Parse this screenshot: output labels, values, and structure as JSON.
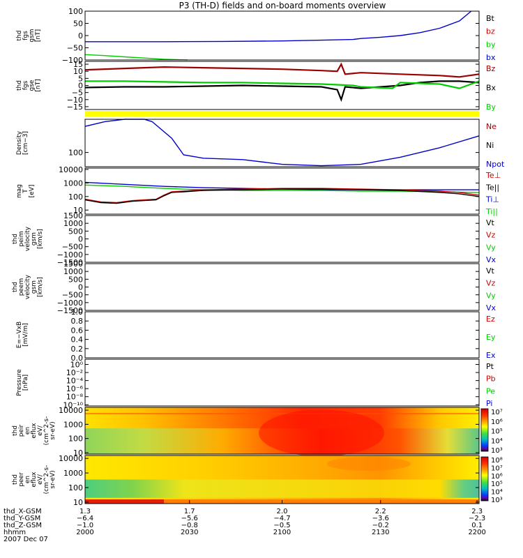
{
  "title": "P3 (TH-D) fields and on-board moments overview",
  "date": "2007 Dec 07",
  "colors": {
    "black": "#000000",
    "red": "#cc0000",
    "green": "#00cc00",
    "blue": "#0000cc",
    "darkred": "#990000",
    "lightgreen": "#33ee33",
    "yellow": "#ffff00"
  },
  "chart_data": [
    {
      "type": "line",
      "panel": "fgs_gsm",
      "ylabel": [
        "thd",
        "fgs",
        "gsm",
        "[nT]"
      ],
      "ylim": [
        -100,
        100
      ],
      "yticks": [
        "100",
        "50",
        "0",
        "−50",
        "−100"
      ],
      "ytick_values": [
        100,
        50,
        0,
        -50,
        -100
      ],
      "legend": [
        {
          "name": "Bt",
          "color": "#000000"
        },
        {
          "name": "bz",
          "color": "#cc0000"
        },
        {
          "name": "by",
          "color": "#00cc00"
        },
        {
          "name": "bx",
          "color": "#0000cc"
        }
      ],
      "series": [
        {
          "name": "bx",
          "color": "#0000cc",
          "x": [
            0,
            0.2,
            0.35,
            0.5,
            0.6,
            0.68,
            0.7,
            0.75,
            0.8,
            0.85,
            0.9,
            0.95,
            0.98
          ],
          "y": [
            -25,
            -25,
            -24,
            -22,
            -19,
            -16,
            -12,
            -7,
            0,
            12,
            30,
            60,
            100
          ]
        },
        {
          "name": "by",
          "color": "#00cc00",
          "x": [
            0,
            0.05,
            0.1,
            0.15,
            0.2,
            0.26
          ],
          "y": [
            -78,
            -82,
            -87,
            -92,
            -97,
            -100
          ]
        }
      ]
    },
    {
      "type": "line",
      "panel": "fgs_gse",
      "ylabel": [
        "thd",
        "fgs",
        "gse",
        "[nT]"
      ],
      "ylim": [
        -17,
        17
      ],
      "yticks": [
        "15",
        "10",
        "5",
        "0",
        "−5",
        "−10",
        "−15"
      ],
      "ytick_values": [
        15,
        10,
        5,
        0,
        -5,
        -10,
        -15
      ],
      "legend": [
        {
          "name": "Bz",
          "color": "#990000"
        },
        {
          "name": "Bx",
          "color": "#000000"
        },
        {
          "name": "By",
          "color": "#00cc00"
        }
      ],
      "series": [
        {
          "name": "Bz",
          "color": "#990000",
          "x": [
            0,
            0.1,
            0.2,
            0.3,
            0.4,
            0.5,
            0.6,
            0.64,
            0.65,
            0.66,
            0.7,
            0.8,
            0.9,
            0.95,
            1
          ],
          "y": [
            11,
            12,
            13,
            12.5,
            12,
            11.5,
            10.5,
            10,
            15,
            8,
            9,
            8,
            7,
            6,
            8
          ]
        },
        {
          "name": "Bx",
          "color": "#000000",
          "x": [
            0,
            0.1,
            0.2,
            0.3,
            0.4,
            0.5,
            0.6,
            0.64,
            0.65,
            0.66,
            0.7,
            0.8,
            0.85,
            0.9,
            0.95,
            1
          ],
          "y": [
            -1.5,
            -1,
            -1,
            -0.5,
            0,
            -0.5,
            -1,
            -3,
            -10,
            -1,
            -2,
            0,
            2,
            3,
            3,
            2
          ]
        },
        {
          "name": "By",
          "color": "#00cc00",
          "x": [
            0,
            0.1,
            0.2,
            0.3,
            0.4,
            0.5,
            0.6,
            0.68,
            0.7,
            0.78,
            0.8,
            0.9,
            0.95,
            1
          ],
          "y": [
            3,
            3,
            2.5,
            2,
            2,
            1.5,
            1,
            0,
            -1,
            -2,
            2,
            1,
            -2,
            3
          ]
        }
      ]
    },
    {
      "type": "line",
      "panel": "density",
      "ylabel": [
        "Density",
        "[cm−3]"
      ],
      "ylim": [
        0,
        1
      ],
      "yticks": [
        "100"
      ],
      "ytick_values": [
        0.3
      ],
      "legend": [
        {
          "name": "Ne",
          "color": "#990000"
        },
        {
          "name": "Ni",
          "color": "#000000"
        },
        {
          "name": "Npot",
          "color": "#0000cc"
        }
      ],
      "series": [
        {
          "name": "Npot",
          "color": "#0000cc",
          "x": [
            0,
            0.05,
            0.1,
            0.15,
            0.17,
            0.22,
            0.25,
            0.3,
            0.4,
            0.5,
            0.6,
            0.7,
            0.8,
            0.9,
            1
          ],
          "y": [
            0.85,
            0.95,
            1,
            1,
            0.95,
            0.6,
            0.25,
            0.18,
            0.15,
            0.05,
            0.02,
            0.05,
            0.2,
            0.4,
            0.65
          ]
        }
      ]
    },
    {
      "type": "line",
      "panel": "temperature",
      "ylabel": [
        "mag",
        "T",
        "[eV]"
      ],
      "ylim": [
        0.7,
        4.1
      ],
      "yticks": [
        "10000",
        "1000",
        "100",
        "10"
      ],
      "ytick_values": [
        4,
        3,
        2,
        1
      ],
      "legend": [
        {
          "name": "Te⊥",
          "color": "#cc0000"
        },
        {
          "name": "Te||",
          "color": "#000000"
        },
        {
          "name": "Ti⊥",
          "color": "#0000cc"
        },
        {
          "name": "Ti||",
          "color": "#00cc00"
        }
      ],
      "series": [
        {
          "name": "Ti⊥",
          "color": "#0000cc",
          "x": [
            0,
            0.1,
            0.2,
            0.3,
            0.4,
            0.5,
            0.6,
            0.7,
            0.8,
            0.9,
            1
          ],
          "y": [
            3.05,
            2.9,
            2.75,
            2.65,
            2.6,
            2.55,
            2.5,
            2.5,
            2.5,
            2.5,
            2.5
          ]
        },
        {
          "name": "Ti||",
          "color": "#00cc00",
          "x": [
            0,
            0.1,
            0.2,
            0.3,
            0.4,
            0.5,
            0.6,
            0.7,
            0.8,
            0.9,
            1
          ],
          "y": [
            2.85,
            2.75,
            2.6,
            2.5,
            2.45,
            2.45,
            2.45,
            2.4,
            2.4,
            2.35,
            2.3
          ]
        },
        {
          "name": "Te⊥",
          "color": "#cc0000",
          "x": [
            0,
            0.04,
            0.08,
            0.12,
            0.15,
            0.18,
            0.2,
            0.22,
            0.25,
            0.3,
            0.4,
            0.5,
            0.6,
            0.7,
            0.8,
            0.9,
            0.95,
            1
          ],
          "y": [
            1.8,
            1.6,
            1.55,
            1.7,
            1.75,
            1.8,
            2.1,
            2.35,
            2.4,
            2.5,
            2.55,
            2.6,
            2.6,
            2.55,
            2.5,
            2.4,
            2.3,
            2.1
          ]
        },
        {
          "name": "Te||",
          "color": "#000000",
          "x": [
            0,
            0.04,
            0.08,
            0.12,
            0.15,
            0.18,
            0.2,
            0.22,
            0.25,
            0.3,
            0.4,
            0.5,
            0.6,
            0.7,
            0.8,
            0.9,
            0.95,
            1
          ],
          "y": [
            1.75,
            1.55,
            1.5,
            1.65,
            1.7,
            1.75,
            2.05,
            2.3,
            2.35,
            2.45,
            2.5,
            2.55,
            2.55,
            2.5,
            2.45,
            2.3,
            2.2,
            2.0
          ]
        }
      ]
    },
    {
      "type": "line",
      "panel": "peim_velocity",
      "ylabel": [
        "thd",
        "peim",
        "velocity",
        "gsm",
        "[km/s]"
      ],
      "ylim": [
        -1500,
        1500
      ],
      "yticks": [
        "1500",
        "1000",
        "500",
        "0",
        "−500",
        "−1000",
        "−1500"
      ],
      "ytick_values": [
        1500,
        1000,
        500,
        0,
        -500,
        -1000,
        -1500
      ],
      "legend": [
        {
          "name": "Vt",
          "color": "#000000"
        },
        {
          "name": "Vz",
          "color": "#cc0000"
        },
        {
          "name": "Vy",
          "color": "#00cc00"
        },
        {
          "name": "Vx",
          "color": "#0000cc"
        }
      ],
      "series": []
    },
    {
      "type": "line",
      "panel": "peem_velocity",
      "ylabel": [
        "thd",
        "peem",
        "velocity",
        "gsm",
        "[km/s]"
      ],
      "ylim": [
        -1500,
        1500
      ],
      "yticks": [
        "1500",
        "1000",
        "500",
        "0",
        "−500",
        "−1000",
        "−1500"
      ],
      "ytick_values": [
        1500,
        1000,
        500,
        0,
        -500,
        -1000,
        -1500
      ],
      "legend": [
        {
          "name": "Vt",
          "color": "#000000"
        },
        {
          "name": "Vz",
          "color": "#cc0000"
        },
        {
          "name": "Vy",
          "color": "#00cc00"
        },
        {
          "name": "Vx",
          "color": "#0000cc"
        }
      ],
      "series": []
    },
    {
      "type": "line",
      "panel": "efield",
      "ylabel": [
        "E=−VxB",
        "[mV/m]"
      ],
      "ylim": [
        0,
        1
      ],
      "yticks": [
        "1.0",
        "0.8",
        "0.6",
        "0.4",
        "0.2",
        "0.0"
      ],
      "ytick_values": [
        1,
        0.8,
        0.6,
        0.4,
        0.2,
        0
      ],
      "legend": [
        {
          "name": "Ez",
          "color": "#cc0000"
        },
        {
          "name": "Ey",
          "color": "#00cc00"
        },
        {
          "name": "Ex",
          "color": "#0000cc"
        }
      ],
      "series": []
    },
    {
      "type": "line",
      "panel": "pressure",
      "ylabel": [
        "Pressure",
        "[nPa]"
      ],
      "ylim": [
        -10.3,
        1.3
      ],
      "yticks": [
        "10⁰",
        "10⁻²",
        "10⁻⁴",
        "10⁻⁶",
        "10⁻⁸",
        "10⁻¹⁰"
      ],
      "ytick_values": [
        0,
        -2,
        -4,
        -6,
        -8,
        -10
      ],
      "legend": [
        {
          "name": "Pt",
          "color": "#000000"
        },
        {
          "name": "Pb",
          "color": "#cc0000"
        },
        {
          "name": "Pe",
          "color": "#00cc00"
        },
        {
          "name": "Pi",
          "color": "#0000cc"
        }
      ],
      "series": []
    },
    {
      "type": "heatmap",
      "panel": "peir_spec",
      "ylabel": [
        "thd",
        "peir",
        "en",
        "eflux",
        "eV/",
        "(cm^2-s-",
        "sr-eV)"
      ],
      "ylim": [
        0.9,
        4.2
      ],
      "yticks": [
        "10000",
        "1000",
        "100",
        "10"
      ],
      "ytick_values": [
        4,
        3,
        2,
        1
      ],
      "colorbar": [
        "10⁷",
        "10⁶",
        "10⁵",
        "10⁴",
        "10³"
      ]
    },
    {
      "type": "heatmap",
      "panel": "peer_spec",
      "ylabel": [
        "thd",
        "peer",
        "en",
        "eflux",
        "eV/",
        "(cm^2-s-",
        "sr-eV)"
      ],
      "ylim": [
        0.9,
        4.2
      ],
      "yticks": [
        "10000",
        "1000",
        "100",
        "10"
      ],
      "ytick_values": [
        4,
        3,
        2,
        1
      ],
      "colorbar": [
        "10⁸",
        "10⁷",
        "10⁶",
        "10⁵",
        "10⁴",
        "10³"
      ]
    }
  ],
  "xaxis": {
    "rows": [
      {
        "label": "thd_X-GSM",
        "values": [
          "1.3",
          "1.7",
          "2.0",
          "2.2",
          "2.3"
        ]
      },
      {
        "label": "thd_Y-GSM",
        "values": [
          "−6.4",
          "−5.6",
          "−4.7",
          "−3.6",
          "−2.3"
        ]
      },
      {
        "label": "thd_Z-GSM",
        "values": [
          "−1.0",
          "−0.8",
          "−0.5",
          "−0.2",
          "0.1"
        ]
      },
      {
        "label": "hhmm",
        "values": [
          "2000",
          "2030",
          "2100",
          "2130",
          "2200"
        ]
      }
    ]
  }
}
